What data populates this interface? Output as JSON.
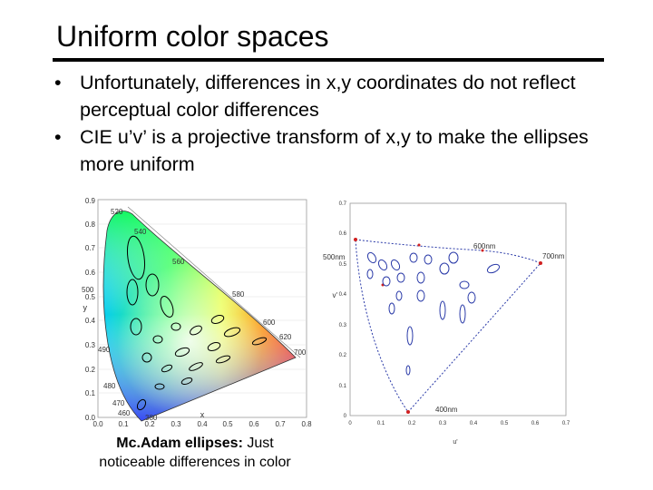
{
  "slide": {
    "title": "Uniform color spaces",
    "bullets": [
      "Unfortunately, differences in x,y coordinates do not reflect perceptual color differences",
      "CIE u’v’ is a projective transform of x,y to make the ellipses more uniform"
    ],
    "bullet_marker": "•",
    "caption_bold": "Mc.Adam ellipses:",
    "caption_rest": " Just noticeable differences in color"
  },
  "figure_xy": {
    "x_ticks": [
      "0.0",
      "0.1",
      "0.2",
      "0.3",
      "0.4",
      "0.5",
      "0.6",
      "0.7",
      "0.8"
    ],
    "y_ticks": [
      "0.0",
      "0.1",
      "0.2",
      "0.3",
      "0.4",
      "0.5",
      "0.6",
      "0.7",
      "0.8",
      "0.9"
    ],
    "xlabel": "x",
    "ylabel": "y",
    "wavelengths": [
      "520",
      "540",
      "560",
      "580",
      "600",
      "620",
      "700",
      "500",
      "490",
      "480",
      "470",
      "460",
      "380"
    ]
  },
  "figure_uv": {
    "x_ticks": [
      "0",
      "0.1",
      "0.2",
      "0.3",
      "0.4",
      "0.5",
      "0.6",
      "0.7"
    ],
    "y_ticks": [
      "0",
      "0.1",
      "0.2",
      "0.3",
      "0.4",
      "0.5",
      "0.6",
      "0.7"
    ],
    "xlabel": "u'",
    "ylabel": "v'",
    "labels": [
      "600nm",
      "700nm",
      "500nm",
      "400nm"
    ]
  }
}
